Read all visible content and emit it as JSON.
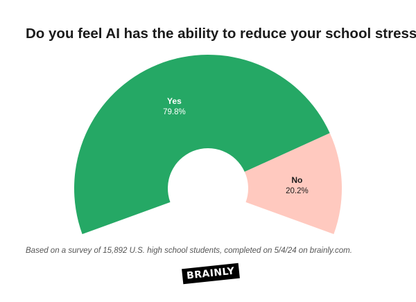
{
  "title": "Do you feel AI has the ability to reduce your school stress?",
  "footnote": "Based on a survey of 15,892 U.S. high school students, completed on 5/4/24 on brainly.com.",
  "logo_text": "BRAINLY",
  "chart_data": {
    "type": "pie",
    "variant": "semi-donut",
    "title": "Do you feel AI has the ability to reduce your school stress?",
    "slices": [
      {
        "label": "Yes",
        "value": 79.8,
        "value_label": "79.8%",
        "color": "#25a865",
        "label_color": "#ffffff"
      },
      {
        "label": "No",
        "value": 20.2,
        "value_label": "20.2%",
        "color": "#ffc9bf",
        "label_color": "#1b1b1b"
      }
    ]
  }
}
